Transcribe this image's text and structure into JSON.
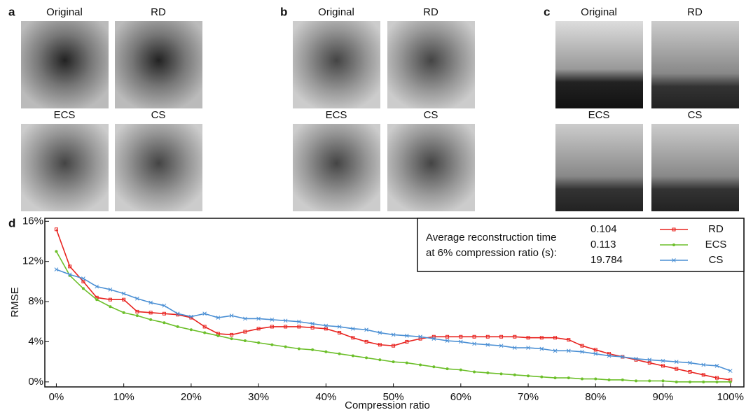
{
  "panels": [
    {
      "label": "a",
      "images": [
        "Original",
        "RD",
        "ECS",
        "CS"
      ]
    },
    {
      "label": "b",
      "images": [
        "Original",
        "RD",
        "ECS",
        "CS"
      ]
    },
    {
      "label": "c",
      "images": [
        "Original",
        "RD",
        "ECS",
        "CS"
      ]
    }
  ],
  "chart_data": {
    "type": "line",
    "panel_label": "d",
    "x_label": "Compression ratio",
    "y_label": "RMSE",
    "xlim": [
      -1.5,
      102
    ],
    "ylim": [
      -0.5,
      16.3
    ],
    "xticks": [
      {
        "value": 0,
        "label": "0%"
      },
      {
        "value": 10,
        "label": "10%"
      },
      {
        "value": 20,
        "label": "20%"
      },
      {
        "value": 30,
        "label": "30%"
      },
      {
        "value": 40,
        "label": "40%"
      },
      {
        "value": 50,
        "label": "50%"
      },
      {
        "value": 60,
        "label": "60%"
      },
      {
        "value": 70,
        "label": "70%"
      },
      {
        "value": 80,
        "label": "80%"
      },
      {
        "value": 90,
        "label": "90%"
      },
      {
        "value": 100,
        "label": "100%"
      }
    ],
    "yticks": [
      {
        "value": 0,
        "label": "0%"
      },
      {
        "value": 4,
        "label": "4%"
      },
      {
        "value": 8,
        "label": "8%"
      },
      {
        "value": 12,
        "label": "12%"
      },
      {
        "value": 16,
        "label": "16%"
      }
    ],
    "legend_title": [
      "Average reconstruction time",
      "at 6% compression ratio (s):"
    ],
    "legend_position": "upper right",
    "x": [
      0,
      2,
      4,
      6,
      8,
      10,
      12,
      14,
      16,
      18,
      20,
      22,
      24,
      26,
      28,
      30,
      32,
      34,
      36,
      38,
      40,
      42,
      44,
      46,
      48,
      50,
      52,
      54,
      56,
      58,
      60,
      62,
      64,
      66,
      68,
      70,
      72,
      74,
      76,
      78,
      80,
      82,
      84,
      86,
      88,
      90,
      92,
      94,
      96,
      98,
      100
    ],
    "series": [
      {
        "name": "RD",
        "time": "0.104",
        "color": "#e8231f",
        "marker": "square",
        "values": [
          15.2,
          11.5,
          10.0,
          8.4,
          8.2,
          8.2,
          7.0,
          6.9,
          6.8,
          6.7,
          6.4,
          5.5,
          4.8,
          4.7,
          5.0,
          5.3,
          5.5,
          5.5,
          5.5,
          5.4,
          5.3,
          4.9,
          4.4,
          4.0,
          3.7,
          3.6,
          4.0,
          4.3,
          4.5,
          4.5,
          4.5,
          4.5,
          4.5,
          4.5,
          4.5,
          4.4,
          4.4,
          4.4,
          4.2,
          3.6,
          3.2,
          2.8,
          2.5,
          2.2,
          1.9,
          1.6,
          1.3,
          1.0,
          0.7,
          0.4,
          0.2
        ]
      },
      {
        "name": "ECS",
        "time": "0.113",
        "color": "#6cbf2a",
        "marker": "circle",
        "values": [
          13.0,
          10.6,
          9.3,
          8.2,
          7.5,
          6.9,
          6.6,
          6.2,
          5.9,
          5.5,
          5.2,
          4.9,
          4.6,
          4.3,
          4.1,
          3.9,
          3.7,
          3.5,
          3.3,
          3.2,
          3.0,
          2.8,
          2.6,
          2.4,
          2.2,
          2.0,
          1.9,
          1.7,
          1.5,
          1.3,
          1.2,
          1.0,
          0.9,
          0.8,
          0.7,
          0.6,
          0.5,
          0.4,
          0.4,
          0.3,
          0.3,
          0.2,
          0.2,
          0.1,
          0.1,
          0.1,
          0.0,
          0.0,
          0.0,
          0.0,
          0.0
        ]
      },
      {
        "name": "CS",
        "time": "19.784",
        "color": "#4a8fd4",
        "marker": "cross",
        "values": [
          11.2,
          10.7,
          10.3,
          9.5,
          9.2,
          8.8,
          8.3,
          7.9,
          7.6,
          6.8,
          6.5,
          6.8,
          6.4,
          6.6,
          6.3,
          6.3,
          6.2,
          6.1,
          6.0,
          5.8,
          5.6,
          5.5,
          5.3,
          5.2,
          4.9,
          4.7,
          4.6,
          4.5,
          4.3,
          4.1,
          4.0,
          3.8,
          3.7,
          3.6,
          3.4,
          3.4,
          3.3,
          3.1,
          3.1,
          3.0,
          2.8,
          2.6,
          2.5,
          2.3,
          2.2,
          2.1,
          2.0,
          1.9,
          1.7,
          1.6,
          1.1
        ]
      }
    ]
  }
}
